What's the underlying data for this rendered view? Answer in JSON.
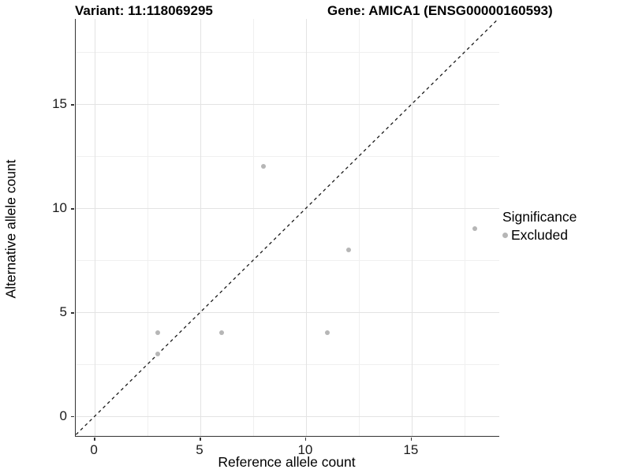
{
  "header": {
    "variant_title": "Variant: 11:118069295",
    "gene_title": "Gene: AMICA1 (ENSG00000160593)"
  },
  "chart_data": {
    "type": "scatter",
    "xlabel": "Reference allele count",
    "ylabel": "Alternative allele count",
    "xlim": [
      -0.9,
      19.15
    ],
    "ylim": [
      -0.95,
      19.1
    ],
    "x_major_ticks": [
      0,
      5,
      10,
      15
    ],
    "y_major_ticks": [
      0,
      5,
      10,
      15
    ],
    "x_minor_gridlines": [
      2.5,
      7.5,
      12.5,
      17.5
    ],
    "y_minor_gridlines": [
      2.5,
      7.5,
      12.5,
      17.5
    ],
    "grid": "major+minor on white background",
    "identity_line": {
      "style": "dashed",
      "color": "#1a1a1a",
      "slope": 1,
      "intercept": 0
    },
    "series": [
      {
        "name": "Excluded",
        "color": "#b6b6b6",
        "points": [
          [
            3,
            3
          ],
          [
            3,
            4
          ],
          [
            6,
            4
          ],
          [
            8,
            12
          ],
          [
            11,
            4
          ],
          [
            12,
            8
          ],
          [
            18,
            9
          ]
        ]
      }
    ],
    "legend": {
      "title": "Significance",
      "position": "right-middle",
      "items": [
        {
          "label": "Excluded",
          "color": "#b6b6b6"
        }
      ]
    },
    "colors": {
      "major_grid": "#e3e3e3",
      "minor_grid": "#f0f0f0",
      "axis_line": "#333333",
      "text": "#1a1a1a"
    }
  }
}
